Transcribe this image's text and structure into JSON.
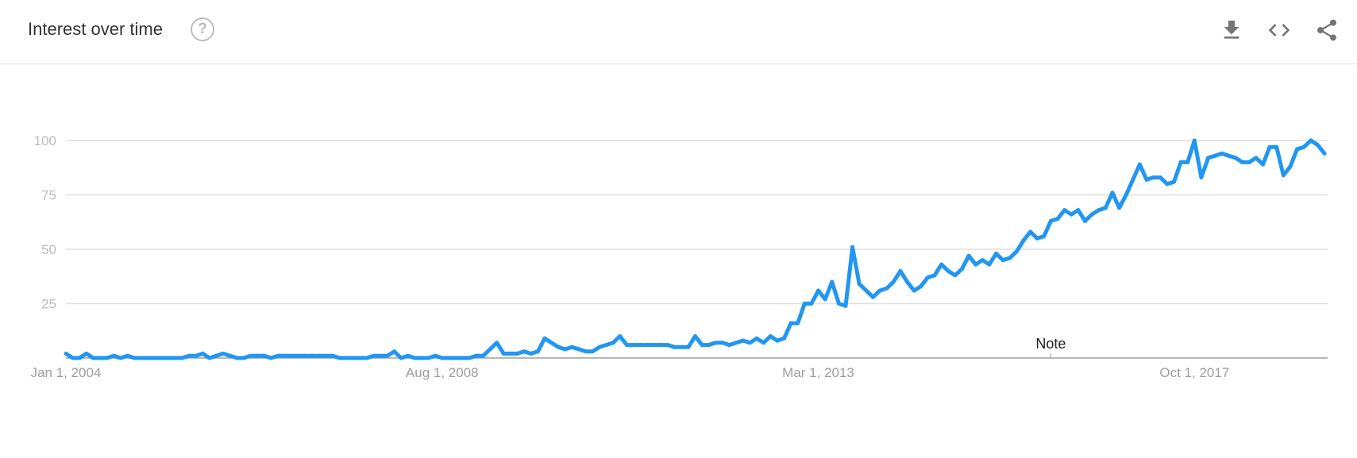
{
  "header": {
    "title": "Interest over time",
    "help_icon": "help-circle-icon",
    "help_glyph": "?",
    "actions": [
      {
        "name": "download-icon"
      },
      {
        "name": "embed-code-icon"
      },
      {
        "name": "share-icon"
      }
    ]
  },
  "colors": {
    "series": "#2196f3",
    "grid": "#e0e0e0",
    "axis": "#9e9e9e",
    "tick_text": "#bdbdbd"
  },
  "chart_data": {
    "type": "line",
    "title": "",
    "xlabel": "",
    "ylabel": "",
    "ylim": [
      0,
      100
    ],
    "yticks": [
      25,
      50,
      75,
      100
    ],
    "grid": true,
    "xtick_labels": [
      {
        "label": "Jan 1, 2004",
        "x": "2004-01"
      },
      {
        "label": "Aug 1, 2008",
        "x": "2008-08"
      },
      {
        "label": "Mar 1, 2013",
        "x": "2013-03"
      },
      {
        "label": "Oct 1, 2017",
        "x": "2017-10"
      }
    ],
    "annotations": [
      {
        "label": "Note",
        "x": "2016-01"
      }
    ],
    "x": [
      "2004-01",
      "2004-02",
      "2004-03",
      "2004-04",
      "2004-05",
      "2004-06",
      "2004-07",
      "2004-08",
      "2004-09",
      "2004-10",
      "2004-11",
      "2004-12",
      "2005-01",
      "2005-02",
      "2005-03",
      "2005-04",
      "2005-05",
      "2005-06",
      "2005-07",
      "2005-08",
      "2005-09",
      "2005-10",
      "2005-11",
      "2005-12",
      "2006-01",
      "2006-02",
      "2006-03",
      "2006-04",
      "2006-05",
      "2006-06",
      "2006-07",
      "2006-08",
      "2006-09",
      "2006-10",
      "2006-11",
      "2006-12",
      "2007-01",
      "2007-02",
      "2007-03",
      "2007-04",
      "2007-05",
      "2007-06",
      "2007-07",
      "2007-08",
      "2007-09",
      "2007-10",
      "2007-11",
      "2007-12",
      "2008-01",
      "2008-02",
      "2008-03",
      "2008-04",
      "2008-05",
      "2008-06",
      "2008-07",
      "2008-08",
      "2008-09",
      "2008-10",
      "2008-11",
      "2008-12",
      "2009-01",
      "2009-02",
      "2009-03",
      "2009-04",
      "2009-05",
      "2009-06",
      "2009-07",
      "2009-08",
      "2009-09",
      "2009-10",
      "2009-11",
      "2009-12",
      "2010-01",
      "2010-02",
      "2010-03",
      "2010-04",
      "2010-05",
      "2010-06",
      "2010-07",
      "2010-08",
      "2010-09",
      "2010-10",
      "2010-11",
      "2010-12",
      "2011-01",
      "2011-02",
      "2011-03",
      "2011-04",
      "2011-05",
      "2011-06",
      "2011-07",
      "2011-08",
      "2011-09",
      "2011-10",
      "2011-11",
      "2011-12",
      "2012-01",
      "2012-02",
      "2012-03",
      "2012-04",
      "2012-05",
      "2012-06",
      "2012-07",
      "2012-08",
      "2012-09",
      "2012-10",
      "2012-11",
      "2012-12",
      "2013-01",
      "2013-02",
      "2013-03",
      "2013-04",
      "2013-05",
      "2013-06",
      "2013-07",
      "2013-08",
      "2013-09",
      "2013-10",
      "2013-11",
      "2013-12",
      "2014-01",
      "2014-02",
      "2014-03",
      "2014-04",
      "2014-05",
      "2014-06",
      "2014-07",
      "2014-08",
      "2014-09",
      "2014-10",
      "2014-11",
      "2014-12",
      "2015-01",
      "2015-02",
      "2015-03",
      "2015-04",
      "2015-05",
      "2015-06",
      "2015-07",
      "2015-08",
      "2015-09",
      "2015-10",
      "2015-11",
      "2015-12",
      "2016-01",
      "2016-02",
      "2016-03",
      "2016-04",
      "2016-05",
      "2016-06",
      "2016-07",
      "2016-08",
      "2016-09",
      "2016-10",
      "2016-11",
      "2016-12",
      "2017-01",
      "2017-02",
      "2017-03",
      "2017-04",
      "2017-05",
      "2017-06",
      "2017-07",
      "2017-08",
      "2017-09",
      "2017-10",
      "2017-11",
      "2017-12",
      "2018-01",
      "2018-02",
      "2018-03",
      "2018-04",
      "2018-05",
      "2018-06",
      "2018-07",
      "2018-08",
      "2018-09",
      "2018-10",
      "2018-11",
      "2018-12",
      "2019-01",
      "2019-02",
      "2019-03",
      "2019-04",
      "2019-05"
    ],
    "series": [
      {
        "values": [
          2,
          0,
          0,
          2,
          0,
          0,
          0,
          1,
          0,
          1,
          0,
          0,
          0,
          0,
          0,
          0,
          0,
          0,
          1,
          1,
          2,
          0,
          1,
          2,
          1,
          0,
          0,
          1,
          1,
          1,
          0,
          1,
          1,
          1,
          1,
          1,
          1,
          1,
          1,
          1,
          0,
          0,
          0,
          0,
          0,
          1,
          1,
          1,
          3,
          0,
          1,
          0,
          0,
          0,
          1,
          0,
          0,
          0,
          0,
          0,
          1,
          1,
          4,
          7,
          2,
          2,
          2,
          3,
          2,
          3,
          9,
          7,
          5,
          4,
          5,
          4,
          3,
          3,
          5,
          6,
          7,
          10,
          6,
          6,
          6,
          6,
          6,
          6,
          6,
          5,
          5,
          5,
          10,
          6,
          6,
          7,
          7,
          6,
          7,
          8,
          7,
          9,
          7,
          10,
          8,
          9,
          16,
          16,
          25,
          25,
          31,
          27,
          35,
          25,
          24,
          51,
          34,
          31,
          28,
          31,
          32,
          35,
          40,
          35,
          31,
          33,
          37,
          38,
          43,
          40,
          38,
          41,
          47,
          43,
          45,
          43,
          48,
          45,
          46,
          49,
          54,
          58,
          55,
          56,
          63,
          64,
          68,
          66,
          68,
          63,
          66,
          68,
          69,
          76,
          69,
          75,
          82,
          89,
          82,
          83,
          83,
          80,
          81,
          90,
          90,
          100,
          83,
          92,
          93,
          94,
          93,
          92,
          90,
          90,
          92,
          89,
          97,
          97,
          84,
          88,
          96,
          97,
          100,
          98,
          94
        ]
      }
    ]
  }
}
